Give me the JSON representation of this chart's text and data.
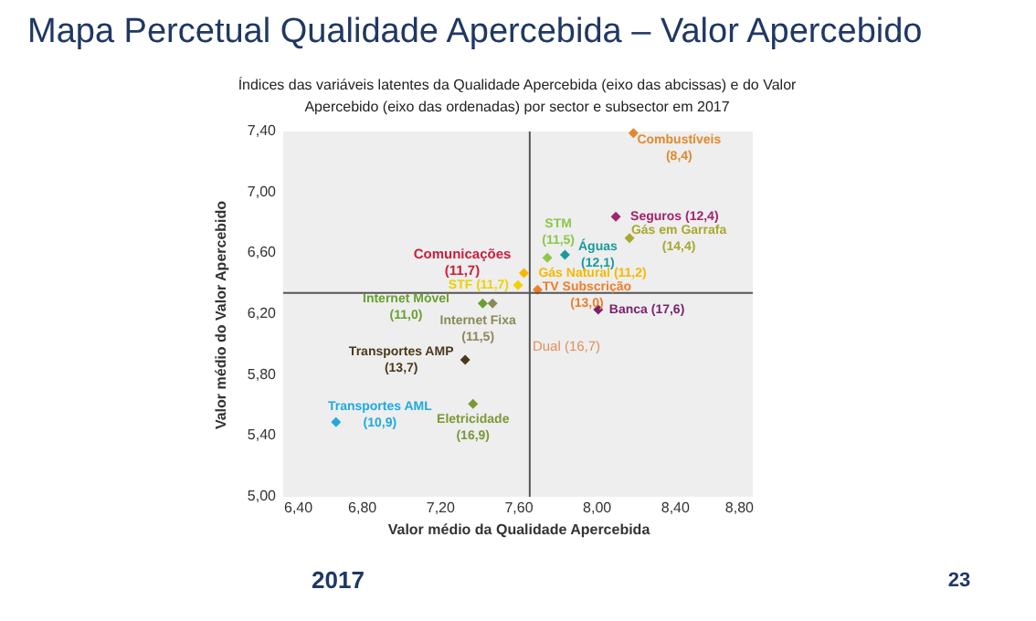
{
  "chart_data": {
    "type": "scatter",
    "title": "Mapa Percetual Qualidade Apercebida – Valor Apercebido",
    "subtitle": "Índices das variáveis latentes da Qualidade Apercebida (eixo das abcissas) e do Valor\nApercebido (eixo das ordenadas) por sector e subsector em 2017",
    "xlabel": "Valor médio da Qualidade Apercebida",
    "ylabel": "Valor médio do Valor Apercebido",
    "x": [
      8.19,
      8.1,
      8.17,
      7.84,
      7.75,
      7.63,
      7.6,
      7.7,
      8.01,
      7.42,
      7.47,
      7.33,
      7.37,
      6.67
    ],
    "series": [
      {
        "values": [
          7.39,
          6.84,
          6.7,
          6.59,
          6.57,
          6.47,
          6.39,
          6.36,
          6.23,
          6.27,
          6.27,
          5.9,
          5.61,
          5.49
        ],
        "colors": [
          "#e08a2e",
          "#a0246e",
          "#a8a830",
          "#1a9a9a",
          "#8cc84b",
          "#f5b800",
          "#f0d000",
          "#f07d2a",
          "#7a1f6e",
          "#6aa032",
          "#8a8a5a",
          "#4a3a1a",
          "#7a9a3a",
          "#1eaae0"
        ]
      }
    ],
    "xlim": [
      6.4,
      8.8
    ],
    "ylim": [
      5.0,
      7.4
    ],
    "xticks": [
      {
        "value": 6.4,
        "label": "6,40"
      },
      {
        "value": 6.8,
        "label": "6,80"
      },
      {
        "value": 7.2,
        "label": "7,20"
      },
      {
        "value": 7.6,
        "label": "7,60"
      },
      {
        "value": 8.0,
        "label": "8,00"
      },
      {
        "value": 8.4,
        "label": "8,40"
      },
      {
        "value": 8.8,
        "label": "8,80"
      }
    ],
    "yticks": [
      {
        "value": 5.0,
        "label": "5,00"
      },
      {
        "value": 5.4,
        "label": "5,40"
      },
      {
        "value": 5.8,
        "label": "5,80"
      },
      {
        "value": 6.2,
        "label": "6,20"
      },
      {
        "value": 6.6,
        "label": "6,60"
      },
      {
        "value": 7.0,
        "label": "7,00"
      },
      {
        "value": 7.4,
        "label": "7,40"
      }
    ],
    "ref_lines": [
      {
        "axis": "x",
        "value": 7.66,
        "color": "#555555"
      },
      {
        "axis": "y",
        "value": 6.34,
        "color": "#555555"
      }
    ],
    "marker": "diamond",
    "grid": false,
    "annotations": [
      {
        "text": "Combustíveis\n(8,4)",
        "x": 8.19,
        "y": 7.39
      },
      {
        "text": "Seguros (12,4)",
        "x": 8.1,
        "y": 6.84
      },
      {
        "text": "Gás em Garrafa\n(14,4)",
        "x": 8.17,
        "y": 6.7
      },
      {
        "text": "Águas\n(12,1)",
        "x": 7.84,
        "y": 6.59
      },
      {
        "text": "STM\n(11,5)",
        "x": 7.75,
        "y": 6.57
      },
      {
        "text": "Gás Natural (11,2)",
        "x": 7.63,
        "y": 6.47
      },
      {
        "text": "STF (11,7)",
        "x": 7.6,
        "y": 6.39
      },
      {
        "text": "TV Subscrição\n(13,0)",
        "x": 7.7,
        "y": 6.36
      },
      {
        "text": "Banca (17,6)",
        "x": 8.01,
        "y": 6.23
      },
      {
        "text": "Internet Móvel\n(11,0)",
        "x": 7.42,
        "y": 6.27
      },
      {
        "text": "Internet Fixa\n(11,5)",
        "x": 7.47,
        "y": 6.27
      },
      {
        "text": "Transportes AMP\n(13,7)",
        "x": 7.33,
        "y": 5.9
      },
      {
        "text": "Eletricidade\n(16,9)",
        "x": 7.37,
        "y": 5.61
      },
      {
        "text": "Transportes AML\n(10,9)",
        "x": 6.67,
        "y": 5.49
      },
      "Comunicações\n(11,7)",
      "Dual (16,7)",
      "2017",
      "23"
    ]
  }
}
